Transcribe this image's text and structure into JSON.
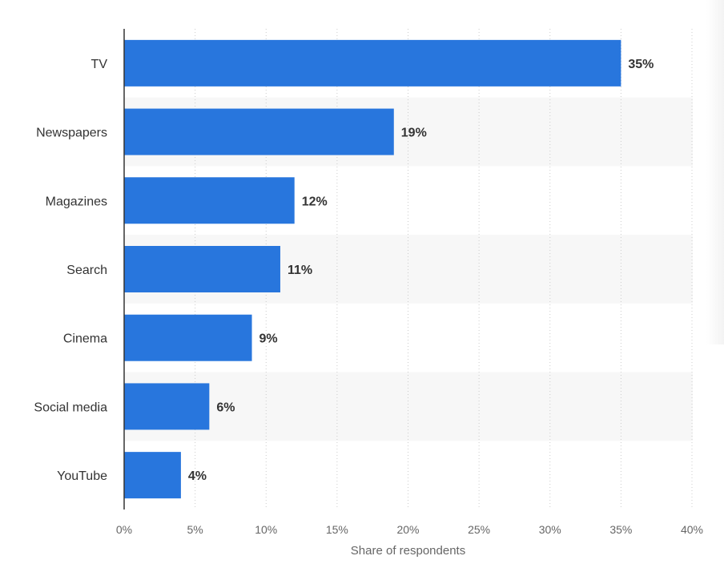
{
  "chart_data": {
    "type": "bar",
    "orientation": "horizontal",
    "categories": [
      "TV",
      "Newspapers",
      "Magazines",
      "Search",
      "Cinema",
      "Social media",
      "YouTube"
    ],
    "values": [
      35,
      19,
      12,
      11,
      9,
      6,
      4
    ],
    "data_labels": [
      "35%",
      "19%",
      "12%",
      "11%",
      "9%",
      "6%",
      "4%"
    ],
    "xlabel": "Share of respondents",
    "ylabel": "",
    "xlim": [
      0,
      40
    ],
    "x_ticks": [
      0,
      5,
      10,
      15,
      20,
      25,
      30,
      35,
      40
    ],
    "x_tick_labels": [
      "0%",
      "5%",
      "10%",
      "15%",
      "20%",
      "25%",
      "30%",
      "35%",
      "40%"
    ],
    "grid": "vertical dotted",
    "legend": "none",
    "colors": {
      "bar": "#2876dd",
      "band": "#f7f7f7",
      "grid": "#cccccc",
      "axis": "#333333"
    }
  }
}
